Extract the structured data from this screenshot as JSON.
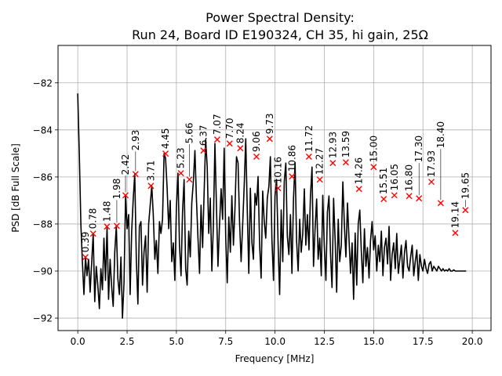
{
  "chart_data": {
    "type": "line",
    "title_lines": [
      "Power Spectral Density:",
      "Run 24, Board ID E190324, CH 35, hi gain, 25Ω"
    ],
    "xlabel": "Frequency [MHz]",
    "ylabel": "PSD [dB Full Scale]",
    "xlim": [
      -1.0,
      20.95
    ],
    "ylim": [
      -92.53,
      -80.41
    ],
    "grid": true,
    "x_ticks": [
      0.0,
      2.5,
      5.0,
      7.5,
      10.0,
      12.5,
      15.0,
      17.5,
      20.0
    ],
    "x_tick_labels": [
      "0.0",
      "2.5",
      "5.0",
      "7.5",
      "10.0",
      "12.5",
      "15.0",
      "17.5",
      "20.0"
    ],
    "y_ticks": [
      -92,
      -90,
      -88,
      -86,
      -84,
      -82
    ],
    "y_tick_labels": [
      "−92",
      "−90",
      "−88",
      "−86",
      "−84",
      "−82"
    ],
    "series": [
      {
        "name": "PSD",
        "color": "#000000",
        "x_start": 0.0,
        "x_step": 0.078125,
        "values": [
          -82.45,
          -85.0,
          -88.0,
          -89.6,
          -91.0,
          -89.41,
          -90.2,
          -89.5,
          -90.9,
          -89.7,
          -88.41,
          -91.3,
          -89.8,
          -90.6,
          -91.6,
          -89.9,
          -90.8,
          -88.6,
          -90.4,
          -88.11,
          -91.2,
          -89.5,
          -90.7,
          -91.5,
          -89.2,
          -88.08,
          -90.3,
          -91.0,
          -89.4,
          -92.0,
          -90.5,
          -86.78,
          -88.2,
          -87.6,
          -91.0,
          -88.3,
          -86.9,
          -85.88,
          -89.5,
          -91.4,
          -88.1,
          -87.9,
          -90.6,
          -89.2,
          -88.5,
          -90.9,
          -88.0,
          -87.2,
          -86.38,
          -87.6,
          -89.5,
          -88.7,
          -90.1,
          -87.9,
          -88.4,
          -87.8,
          -85.01,
          -85.2,
          -86.5,
          -88.2,
          -87.0,
          -89.6,
          -88.8,
          -90.4,
          -87.3,
          -85.84,
          -88.9,
          -90.2,
          -87.5,
          -86.11,
          -89.9,
          -90.6,
          -88.3,
          -89.4,
          -87.1,
          -86.2,
          -84.88,
          -86.9,
          -88.6,
          -90.1,
          -87.2,
          -89.0,
          -86.6,
          -84.41,
          -85.6,
          -88.4,
          -86.9,
          -90.0,
          -88.1,
          -84.58,
          -87.3,
          -89.8,
          -88.0,
          -86.5,
          -87.8,
          -84.78,
          -88.6,
          -90.5,
          -87.7,
          -89.2,
          -86.8,
          -88.9,
          -87.4,
          -85.14,
          -85.4,
          -87.9,
          -89.6,
          -88.0,
          -86.4,
          -84.38,
          -87.5,
          -90.1,
          -86.48,
          -88.8,
          -89.5,
          -86.7,
          -87.2,
          -85.98,
          -88.9,
          -90.3,
          -86.6,
          -87.9,
          -88.6,
          -86.9,
          -86.4,
          -85.14,
          -88.7,
          -90.4,
          -86.8,
          -86.11,
          -88.9,
          -91.0,
          -87.4,
          -89.6,
          -86.2,
          -85.41,
          -88.5,
          -89.3,
          -87.6,
          -90.1,
          -86.9,
          -85.38,
          -88.7,
          -90.0,
          -87.8,
          -89.2,
          -88.4,
          -86.51,
          -88.9,
          -87.6,
          -89.1,
          -86.8,
          -85.58,
          -89.8,
          -88.2,
          -86.94,
          -89.5,
          -88.6,
          -90.2,
          -86.78,
          -89.0,
          -90.4,
          -87.5,
          -86.81,
          -89.3,
          -90.7,
          -86.91,
          -88.7,
          -90.9,
          -87.8,
          -89.6,
          -88.9,
          -86.21,
          -88.0,
          -89.4,
          -87.11,
          -88.6,
          -90.1,
          -88.8,
          -91.2,
          -88.38,
          -90.6,
          -88.0,
          -87.41,
          -89.2,
          -90.5,
          -88.2,
          -89.8,
          -89.0,
          -90.3,
          -88.7,
          -87.9,
          -89.1,
          -88.5,
          -90.0,
          -88.9,
          -89.6,
          -88.3,
          -90.2,
          -89.0,
          -88.6,
          -89.7,
          -88.1,
          -90.4,
          -89.3,
          -88.8,
          -89.9,
          -88.4,
          -90.1,
          -89.5,
          -88.9,
          -90.3,
          -89.2,
          -88.7,
          -89.8,
          -90.0,
          -89.4,
          -88.9,
          -90.2,
          -89.6,
          -89.1,
          -90.4,
          -89.3,
          -89.8,
          -90.0,
          -89.5,
          -89.9,
          -90.1,
          -89.7,
          -89.6,
          -90.0,
          -89.8,
          -89.9,
          -90.0,
          -89.8,
          -89.9,
          -90.0,
          -89.9,
          -90.0,
          -89.95,
          -90.0,
          -89.9,
          -90.0,
          -90.0,
          -89.95,
          -90.0,
          -90.0,
          -90.0,
          -90.0,
          -90.0,
          -90.0,
          -90.0,
          -90.0
        ]
      }
    ],
    "peaks": [
      {
        "label": "0.39",
        "x": 0.39,
        "y": -89.41
      },
      {
        "label": "0.78",
        "x": 0.78,
        "y": -88.41
      },
      {
        "label": "1.48",
        "x": 1.48,
        "y": -88.11
      },
      {
        "label": "1.98",
        "x": 1.98,
        "y": -88.08
      },
      {
        "label": "2.42",
        "x": 2.42,
        "y": -86.78
      },
      {
        "label": "2.93",
        "x": 2.93,
        "y": -85.88
      },
      {
        "label": "3.71",
        "x": 3.71,
        "y": -86.38
      },
      {
        "label": "4.45",
        "x": 4.45,
        "y": -85.01
      },
      {
        "label": "5.23",
        "x": 5.23,
        "y": -85.84
      },
      {
        "label": "5.66",
        "x": 5.66,
        "y": -86.11
      },
      {
        "label": "6.37",
        "x": 6.37,
        "y": -84.88
      },
      {
        "label": "7.07",
        "x": 7.07,
        "y": -84.41
      },
      {
        "label": "7.70",
        "x": 7.7,
        "y": -84.58
      },
      {
        "label": "8.24",
        "x": 8.24,
        "y": -84.78
      },
      {
        "label": "9.06",
        "x": 9.06,
        "y": -85.14
      },
      {
        "label": "9.73",
        "x": 9.73,
        "y": -84.38
      },
      {
        "label": "10.16",
        "x": 10.16,
        "y": -86.48
      },
      {
        "label": "10.86",
        "x": 10.86,
        "y": -85.98
      },
      {
        "label": "11.72",
        "x": 11.72,
        "y": -85.14
      },
      {
        "label": "12.27",
        "x": 12.27,
        "y": -86.11
      },
      {
        "label": "12.93",
        "x": 12.93,
        "y": -85.41
      },
      {
        "label": "13.59",
        "x": 13.59,
        "y": -85.38
      },
      {
        "label": "14.26",
        "x": 14.26,
        "y": -86.51
      },
      {
        "label": "15.00",
        "x": 15.0,
        "y": -85.58
      },
      {
        "label": "15.51",
        "x": 15.51,
        "y": -86.94
      },
      {
        "label": "16.05",
        "x": 16.05,
        "y": -86.78
      },
      {
        "label": "16.80",
        "x": 16.8,
        "y": -86.81
      },
      {
        "label": "17.30",
        "x": 17.3,
        "y": -86.91
      },
      {
        "label": "17.93",
        "x": 17.93,
        "y": -86.21
      },
      {
        "label": "18.40",
        "x": 18.4,
        "y": -87.11
      },
      {
        "label": "19.14",
        "x": 19.14,
        "y": -88.38
      },
      {
        "label": "19.65",
        "x": 19.65,
        "y": -87.41
      }
    ],
    "peak_marker_color": "#ff0000",
    "grid_color": "#b0b0b0"
  }
}
